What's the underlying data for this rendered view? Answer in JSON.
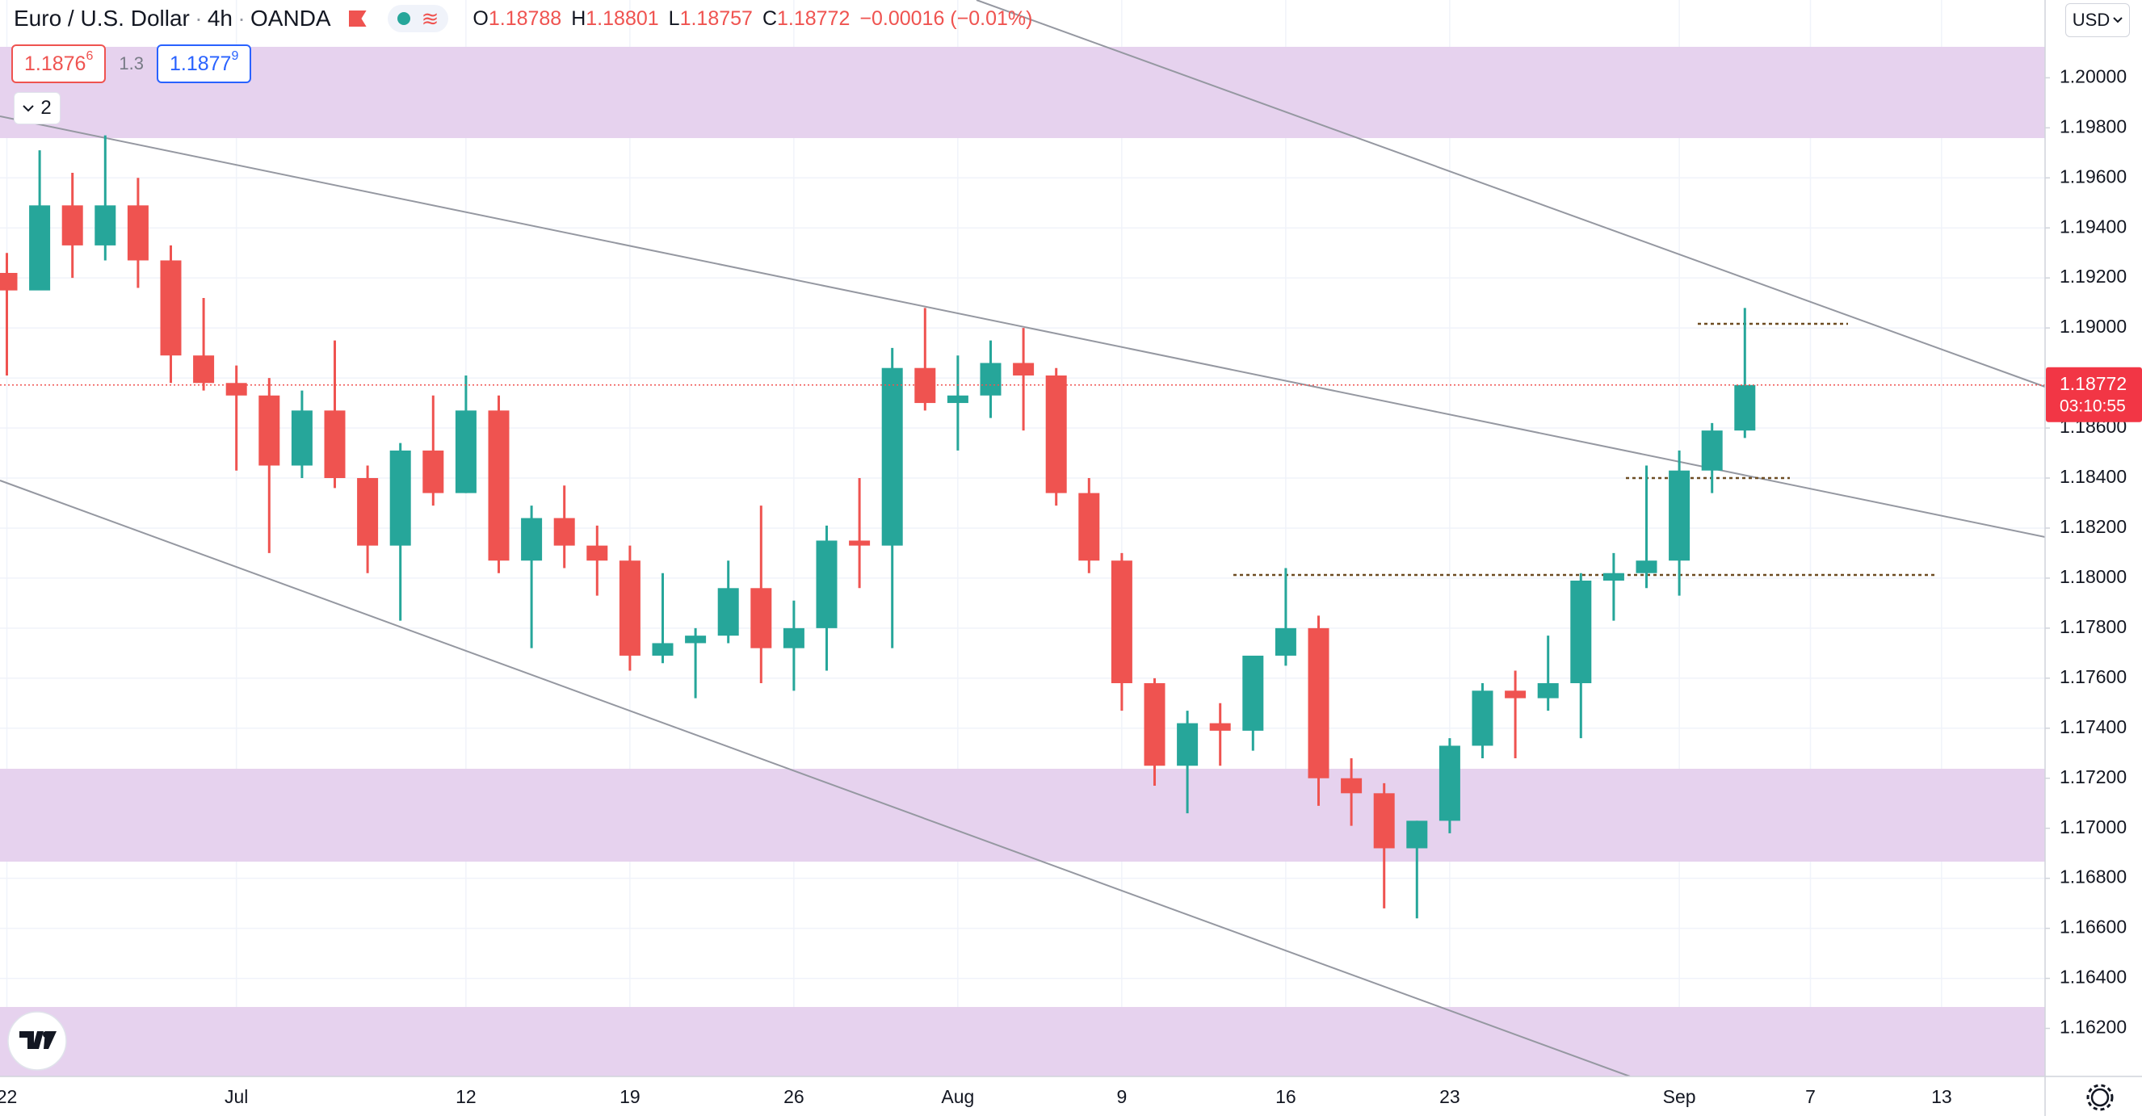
{
  "header": {
    "title": "Euro / U.S. Dollar",
    "interval": "4h",
    "exchange": "OANDA",
    "legend": [
      {
        "key": "O",
        "value": "1.18788"
      },
      {
        "key": "H",
        "value": "1.18801"
      },
      {
        "key": "L",
        "value": "1.18757"
      },
      {
        "key": "C",
        "value": "1.18772"
      }
    ],
    "change": "−0.00016 (−0.01%)"
  },
  "toolbar": {
    "sell_price": {
      "main": "1.1876",
      "pip": "6"
    },
    "spread": "1.3",
    "buy_price": {
      "main": "1.1877",
      "pip": "9"
    },
    "group": "2",
    "currency": "USD"
  },
  "chart_data": {
    "type": "candlestick",
    "categories": [
      "22",
      null,
      null,
      null,
      null,
      null,
      null,
      "Jul",
      null,
      null,
      null,
      null,
      null,
      null,
      "12",
      null,
      null,
      null,
      null,
      "19",
      null,
      null,
      null,
      null,
      "26",
      null,
      null,
      null,
      null,
      "Aug",
      null,
      null,
      null,
      null,
      "9",
      null,
      null,
      null,
      null,
      "16",
      null,
      null,
      null,
      null,
      "23",
      null,
      null,
      null,
      null,
      null,
      null,
      "Sep",
      null,
      null,
      null,
      "7",
      null,
      null,
      null,
      "13",
      null,
      null,
      null
    ],
    "open": [
      1.1922,
      1.1915,
      1.1949,
      1.1933,
      1.1949,
      1.1927,
      1.1889,
      1.1878,
      1.1873,
      1.1845,
      1.1867,
      1.184,
      1.1813,
      1.1851,
      1.1834,
      1.1867,
      1.1807,
      1.1824,
      1.1813,
      1.1807,
      1.1769,
      1.1774,
      1.1777,
      1.1796,
      1.1772,
      1.178,
      1.1815,
      1.1813,
      1.1884,
      1.187,
      1.1873,
      1.1886,
      1.1881,
      1.1834,
      1.1807,
      1.1758,
      1.1725,
      1.1742,
      1.1739,
      1.1769,
      1.178,
      1.172,
      1.1714,
      1.1692,
      1.1703,
      1.1733,
      1.1755,
      1.1752,
      1.1758,
      1.1799,
      1.1802,
      1.1807,
      1.1843,
      1.1859,
      null,
      null,
      null,
      null,
      null,
      null,
      null,
      null,
      null
    ],
    "high": [
      1.193,
      1.1971,
      1.1962,
      1.1977,
      1.196,
      1.1933,
      1.1912,
      1.1885,
      1.188,
      1.1875,
      1.1895,
      1.1845,
      1.1854,
      1.1873,
      1.1881,
      1.1873,
      1.1829,
      1.1837,
      1.1821,
      1.1813,
      1.1802,
      1.178,
      1.1807,
      1.1829,
      1.1791,
      1.1821,
      1.184,
      1.1892,
      1.1908,
      1.1889,
      1.1895,
      1.19,
      1.1884,
      1.184,
      1.181,
      1.176,
      1.1747,
      1.175,
      1.1769,
      1.1804,
      1.1785,
      1.1728,
      1.1718,
      1.1703,
      1.1736,
      1.1758,
      1.1763,
      1.1777,
      1.1802,
      1.181,
      1.1845,
      1.1851,
      1.1862,
      1.1908,
      null,
      null,
      null,
      null,
      null,
      null,
      null,
      null,
      null
    ],
    "low": [
      1.1881,
      1.1916,
      1.192,
      1.1927,
      1.1916,
      1.1878,
      1.1875,
      1.1843,
      1.181,
      1.184,
      1.1836,
      1.1802,
      1.1783,
      1.1829,
      1.1834,
      1.1802,
      1.1772,
      1.1804,
      1.1793,
      1.1763,
      1.1766,
      1.1752,
      1.1774,
      1.1758,
      1.1755,
      1.1763,
      1.1796,
      1.1772,
      1.1867,
      1.1851,
      1.1864,
      1.1859,
      1.1829,
      1.1802,
      1.1747,
      1.1717,
      1.1706,
      1.1725,
      1.1731,
      1.1765,
      1.1709,
      1.1701,
      1.1668,
      1.1664,
      1.1698,
      1.1728,
      1.1728,
      1.1747,
      1.1736,
      1.1783,
      1.1796,
      1.1793,
      1.1834,
      1.1856,
      null,
      null,
      null,
      null,
      null,
      null,
      null,
      null,
      null
    ],
    "close": [
      1.1915,
      1.1949,
      1.1933,
      1.1949,
      1.1927,
      1.1889,
      1.1878,
      1.1873,
      1.1845,
      1.1867,
      1.184,
      1.1813,
      1.1851,
      1.1834,
      1.1867,
      1.1807,
      1.1824,
      1.1813,
      1.1807,
      1.1769,
      1.1774,
      1.1777,
      1.1796,
      1.1772,
      1.178,
      1.1815,
      1.1813,
      1.1884,
      1.187,
      1.1873,
      1.1886,
      1.1881,
      1.1834,
      1.1807,
      1.1758,
      1.1725,
      1.1742,
      1.1739,
      1.1769,
      1.178,
      1.172,
      1.1714,
      1.1692,
      1.1703,
      1.1733,
      1.1755,
      1.1752,
      1.1758,
      1.1799,
      1.1802,
      1.1807,
      1.1843,
      1.1859,
      1.18772,
      null,
      null,
      null,
      null,
      null,
      null,
      null,
      null,
      null
    ],
    "up_color": "#26a69a",
    "down_color": "#ef5350",
    "ylim": [
      1.16008,
      1.20311
    ],
    "yticks": [
      {
        "value": 1.162,
        "label": "1.16200"
      },
      {
        "value": 1.164,
        "label": "1.16400"
      },
      {
        "value": 1.166,
        "label": "1.16600"
      },
      {
        "value": 1.168,
        "label": "1.16800"
      },
      {
        "value": 1.17,
        "label": "1.17000"
      },
      {
        "value": 1.172,
        "label": "1.17200"
      },
      {
        "value": 1.174,
        "label": "1.17400"
      },
      {
        "value": 1.176,
        "label": "1.17600"
      },
      {
        "value": 1.178,
        "label": "1.17800"
      },
      {
        "value": 1.18,
        "label": "1.18000"
      },
      {
        "value": 1.182,
        "label": "1.18200"
      },
      {
        "value": 1.184,
        "label": "1.18400"
      },
      {
        "value": 1.186,
        "label": "1.18600"
      },
      {
        "value": 1.188,
        "label": "1.18800"
      },
      {
        "value": 1.19,
        "label": "1.19000"
      },
      {
        "value": 1.192,
        "label": "1.19200"
      },
      {
        "value": 1.194,
        "label": "1.19400"
      },
      {
        "value": 1.196,
        "label": "1.19600"
      },
      {
        "value": 1.198,
        "label": "1.19800"
      },
      {
        "value": 1.2,
        "label": "1.20000"
      }
    ],
    "grid": true,
    "last_price": {
      "value": 1.18772,
      "label": "1.18772",
      "countdown": "03:10:55"
    }
  }
}
